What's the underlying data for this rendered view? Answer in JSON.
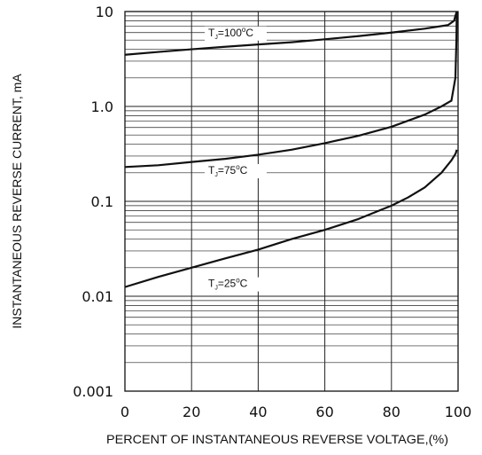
{
  "chart_data": {
    "type": "line",
    "title": "",
    "xlabel": "PERCENT OF INSTANTANEOUS REVERSE VOLTAGE,(%)",
    "ylabel": "INSTANTANEOUS REVERSE CURRENT, mA",
    "xlim": [
      0,
      100
    ],
    "ylim": [
      0.001,
      10
    ],
    "yscale": "log",
    "grid": true,
    "x_ticks": [
      0,
      20,
      40,
      60,
      80,
      100
    ],
    "x_tick_labels": [
      "0",
      "20",
      "40",
      "60",
      "80",
      "100"
    ],
    "y_ticks": [
      0.001,
      0.01,
      0.1,
      1,
      10
    ],
    "y_tick_labels": [
      "0.001",
      "0.01",
      "0.1",
      "1.0",
      "10"
    ],
    "series": [
      {
        "name": "TJ=100°C",
        "label_main": "T",
        "label_sub": "J",
        "label_eq": "=100",
        "label_deg": "o",
        "label_unit": "C",
        "label_at": [
          25,
          5.5
        ],
        "color": "#111111",
        "x": [
          0,
          10,
          20,
          30,
          40,
          50,
          60,
          70,
          80,
          90,
          97,
          98.8,
          99.2,
          99.6
        ],
        "y": [
          3.5,
          3.75,
          4.0,
          4.25,
          4.5,
          4.75,
          5.1,
          5.5,
          6.0,
          6.6,
          7.2,
          8.0,
          9.0,
          10
        ]
      },
      {
        "name": "TJ=75°C",
        "label_main": "T",
        "label_sub": "J",
        "label_eq": "=75",
        "label_deg": "o",
        "label_unit": "C",
        "label_at": [
          25,
          0.195
        ],
        "color": "#111111",
        "x": [
          0,
          10,
          20,
          30,
          40,
          50,
          60,
          70,
          80,
          90,
          95,
          98,
          99.2,
          99.5,
          99.6
        ],
        "y": [
          0.23,
          0.24,
          0.26,
          0.28,
          0.31,
          0.35,
          0.41,
          0.49,
          0.61,
          0.82,
          1.0,
          1.15,
          2.0,
          5.0,
          10
        ]
      },
      {
        "name": "TJ=25°C",
        "label_main": "T",
        "label_sub": "J",
        "label_eq": "=25",
        "label_deg": "o",
        "label_unit": "C",
        "label_at": [
          25,
          0.0125
        ],
        "color": "#111111",
        "x": [
          0,
          10,
          20,
          30,
          40,
          50,
          60,
          70,
          80,
          85,
          90,
          95,
          98,
          99.3,
          99.6
        ],
        "y": [
          0.0125,
          0.016,
          0.02,
          0.025,
          0.031,
          0.04,
          0.05,
          0.065,
          0.09,
          0.11,
          0.14,
          0.2,
          0.27,
          0.32,
          0.35
        ]
      }
    ]
  }
}
